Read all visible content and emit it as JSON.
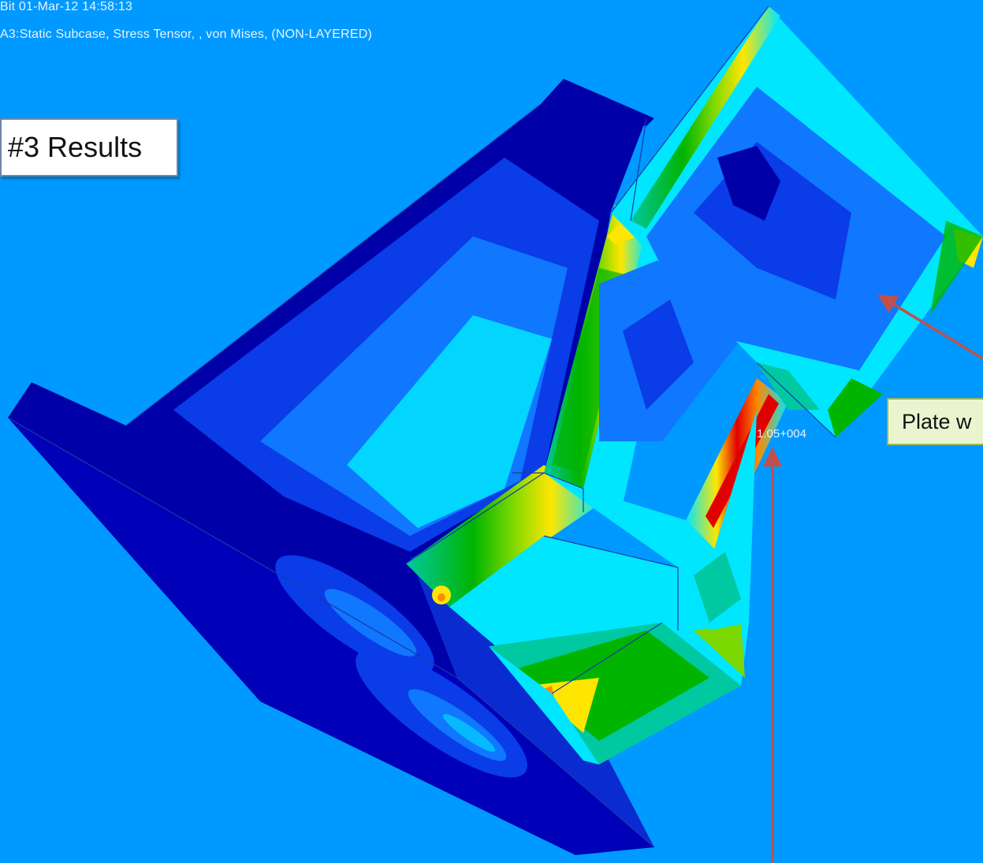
{
  "header": {
    "line1": "Bit 01-Mar-12 14:58:13",
    "line2": "A3:Static Subcase, Stress Tensor, , von Mises, (NON-LAYERED)"
  },
  "results_box": {
    "label": "#3 Results"
  },
  "callout": {
    "label": "Plate w"
  },
  "contour": {
    "peak_value": "1.05+004"
  },
  "colors": {
    "background": "#0099ff",
    "dark_blue": "#0000a8",
    "blue": "#0a3ce8",
    "mid_blue": "#1077ff",
    "cyan": "#00e6ff",
    "teal": "#00c8a0",
    "green": "#00b400",
    "light_green": "#7ad800",
    "yellow": "#ffe600",
    "orange": "#ff8a00",
    "red": "#e00000",
    "arrow": "#c0504d"
  }
}
